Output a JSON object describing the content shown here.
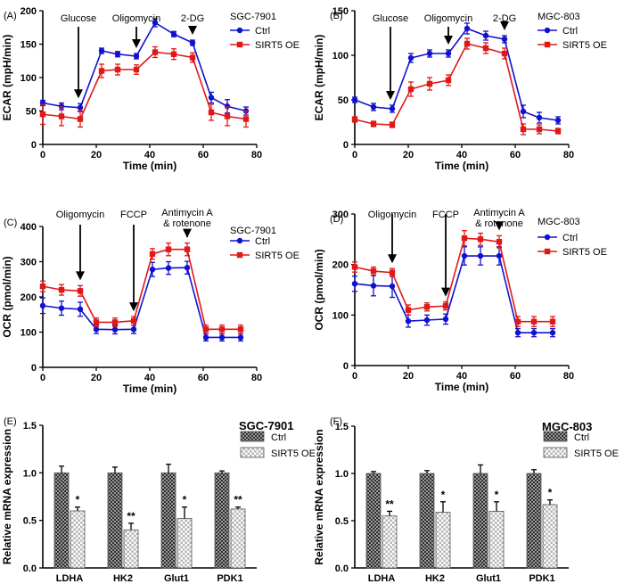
{
  "colors": {
    "ctrl": "#1010d0",
    "oe": "#e01818",
    "axis": "#000000",
    "bar_ctrl": "#3a3a3a",
    "bar_oe": "#c8c8c8"
  },
  "chart_data": [
    {
      "panel": "(A)",
      "type": "line",
      "cell_line": "SGC-7901",
      "xlabel": "Time (min)",
      "ylabel": "ECAR (mpH/min)",
      "xlim": [
        0,
        80
      ],
      "ylim": [
        0,
        200
      ],
      "xticks": [
        "0",
        "20",
        "40",
        "60",
        "80"
      ],
      "yticks": [
        "0",
        "50",
        "100",
        "150",
        "200"
      ],
      "x": [
        0,
        7,
        14,
        22,
        28,
        35,
        42,
        49,
        56,
        63,
        69,
        76
      ],
      "series": [
        {
          "name": "Ctrl",
          "values": [
            62,
            57,
            55,
            140,
            135,
            132,
            182,
            165,
            152,
            70,
            57,
            50
          ],
          "errors": [
            4,
            5,
            6,
            4,
            4,
            4,
            6,
            4,
            4,
            8,
            10,
            6
          ]
        },
        {
          "name": "SIRT5 OE",
          "values": [
            45,
            42,
            38,
            110,
            112,
            112,
            138,
            135,
            130,
            48,
            42,
            38
          ],
          "errors": [
            15,
            14,
            12,
            10,
            8,
            7,
            8,
            8,
            7,
            12,
            14,
            12
          ]
        }
      ],
      "annotations": [
        {
          "text": "Glucose",
          "x": 14
        },
        {
          "text": "Oligomycin",
          "x": 35
        },
        {
          "text": "2-DG",
          "x": 56
        }
      ]
    },
    {
      "panel": "(B)",
      "type": "line",
      "cell_line": "MGC-803",
      "xlabel": "Time (min)",
      "ylabel": "ECAR (mpH/min)",
      "xlim": [
        0,
        80
      ],
      "ylim": [
        0,
        150
      ],
      "xticks": [
        "0",
        "20",
        "40",
        "60",
        "80"
      ],
      "yticks": [
        "0",
        "50",
        "100",
        "150"
      ],
      "x": [
        0,
        7,
        14,
        21,
        28,
        35,
        42,
        49,
        56,
        63,
        69,
        76
      ],
      "series": [
        {
          "name": "Ctrl",
          "values": [
            50,
            42,
            40,
            97,
            102,
            102,
            130,
            122,
            118,
            37,
            30,
            27
          ],
          "errors": [
            3,
            4,
            4,
            5,
            4,
            4,
            6,
            5,
            4,
            7,
            6,
            4
          ]
        },
        {
          "name": "SIRT5 OE",
          "values": [
            28,
            23,
            22,
            62,
            68,
            72,
            113,
            108,
            102,
            17,
            17,
            15
          ],
          "errors": [
            3,
            3,
            3,
            8,
            7,
            6,
            6,
            6,
            6,
            6,
            5,
            3
          ]
        }
      ],
      "annotations": [
        {
          "text": "Glucose",
          "x": 14
        },
        {
          "text": "Oligomycin",
          "x": 35
        },
        {
          "text": "2-DG",
          "x": 56
        }
      ]
    },
    {
      "panel": "(C)",
      "type": "line",
      "cell_line": "SGC-7901",
      "xlabel": "Time (min)",
      "ylabel": "OCR (pmol/min)",
      "xlim": [
        0,
        80
      ],
      "ylim": [
        0,
        400
      ],
      "xticks": [
        "0",
        "20",
        "40",
        "60",
        "80"
      ],
      "yticks": [
        "0",
        "100",
        "200",
        "300",
        "400"
      ],
      "x": [
        0,
        7,
        14,
        20,
        27,
        34,
        41,
        47,
        54,
        61,
        67,
        74
      ],
      "series": [
        {
          "name": "Ctrl",
          "values": [
            175,
            168,
            165,
            108,
            107,
            108,
            278,
            282,
            283,
            85,
            85,
            85
          ],
          "errors": [
            22,
            20,
            20,
            12,
            12,
            12,
            20,
            18,
            18,
            10,
            10,
            10
          ]
        },
        {
          "name": "SIRT5 OE",
          "values": [
            230,
            220,
            217,
            128,
            128,
            132,
            322,
            335,
            335,
            108,
            108,
            108
          ],
          "errors": [
            15,
            15,
            15,
            12,
            12,
            12,
            15,
            18,
            18,
            12,
            12,
            12
          ]
        }
      ],
      "annotations": [
        {
          "text": "Oligomycin",
          "x": 14
        },
        {
          "text": "FCCP",
          "x": 34
        },
        {
          "text": "Antimycin A",
          "line2": "& rotenone",
          "x": 54
        }
      ]
    },
    {
      "panel": "(D)",
      "type": "line",
      "cell_line": "MGC-803",
      "xlabel": "Time (min)",
      "ylabel": "OCR (pmol/min)",
      "xlim": [
        0,
        80
      ],
      "ylim": [
        0,
        300
      ],
      "xticks": [
        "0",
        "20",
        "40",
        "60",
        "80"
      ],
      "yticks": [
        "0",
        "100",
        "200",
        "300"
      ],
      "x": [
        0,
        7,
        14,
        20,
        27,
        34,
        41,
        47,
        54,
        61,
        67,
        74
      ],
      "series": [
        {
          "name": "Ctrl",
          "values": [
            162,
            158,
            157,
            88,
            90,
            92,
            217,
            217,
            217,
            65,
            65,
            65
          ],
          "errors": [
            15,
            20,
            22,
            12,
            10,
            10,
            18,
            18,
            18,
            8,
            8,
            8
          ]
        },
        {
          "name": "SIRT5 OE",
          "values": [
            195,
            187,
            184,
            110,
            116,
            118,
            252,
            250,
            245,
            87,
            87,
            87
          ],
          "errors": [
            10,
            8,
            8,
            10,
            8,
            8,
            15,
            12,
            12,
            10,
            10,
            10
          ]
        }
      ],
      "annotations": [
        {
          "text": "Oligomycin",
          "x": 14
        },
        {
          "text": "FCCP",
          "x": 34
        },
        {
          "text": "Antimycin A",
          "line2": "& rotenone",
          "x": 54
        }
      ]
    },
    {
      "panel": "(E)",
      "type": "bar",
      "title": "SGC-7901",
      "ylabel": "Relative mRNA expression",
      "ylim": [
        0,
        1.5
      ],
      "yticks": [
        "0.0",
        "0.5",
        "1.0",
        "1.5"
      ],
      "categories": [
        "LDHA",
        "HK2",
        "Glut1",
        "PDK1"
      ],
      "series": [
        {
          "name": "Ctrl",
          "values": [
            1.0,
            1.0,
            1.0,
            1.0
          ],
          "errors": [
            0.07,
            0.06,
            0.09,
            0.02
          ]
        },
        {
          "name": "SIRT5 OE",
          "values": [
            0.6,
            0.4,
            0.52,
            0.62
          ],
          "errors": [
            0.04,
            0.07,
            0.12,
            0.02
          ]
        }
      ],
      "significance": [
        "*",
        "**",
        "*",
        "**"
      ]
    },
    {
      "panel": "(F)",
      "type": "bar",
      "title": "MGC-803",
      "ylabel": "Relative mRNA expression",
      "ylim": [
        0,
        1.5
      ],
      "yticks": [
        "0.0",
        "0.5",
        "1.0",
        "1.5"
      ],
      "categories": [
        "LDHA",
        "HK2",
        "Glut1",
        "PDK1"
      ],
      "series": [
        {
          "name": "Ctrl",
          "values": [
            1.0,
            1.0,
            1.0,
            1.0
          ],
          "errors": [
            0.02,
            0.03,
            0.09,
            0.04
          ]
        },
        {
          "name": "SIRT5 OE",
          "values": [
            0.55,
            0.59,
            0.6,
            0.67
          ],
          "errors": [
            0.05,
            0.11,
            0.1,
            0.05
          ]
        }
      ],
      "significance": [
        "**",
        "*",
        "*",
        "*"
      ]
    }
  ]
}
